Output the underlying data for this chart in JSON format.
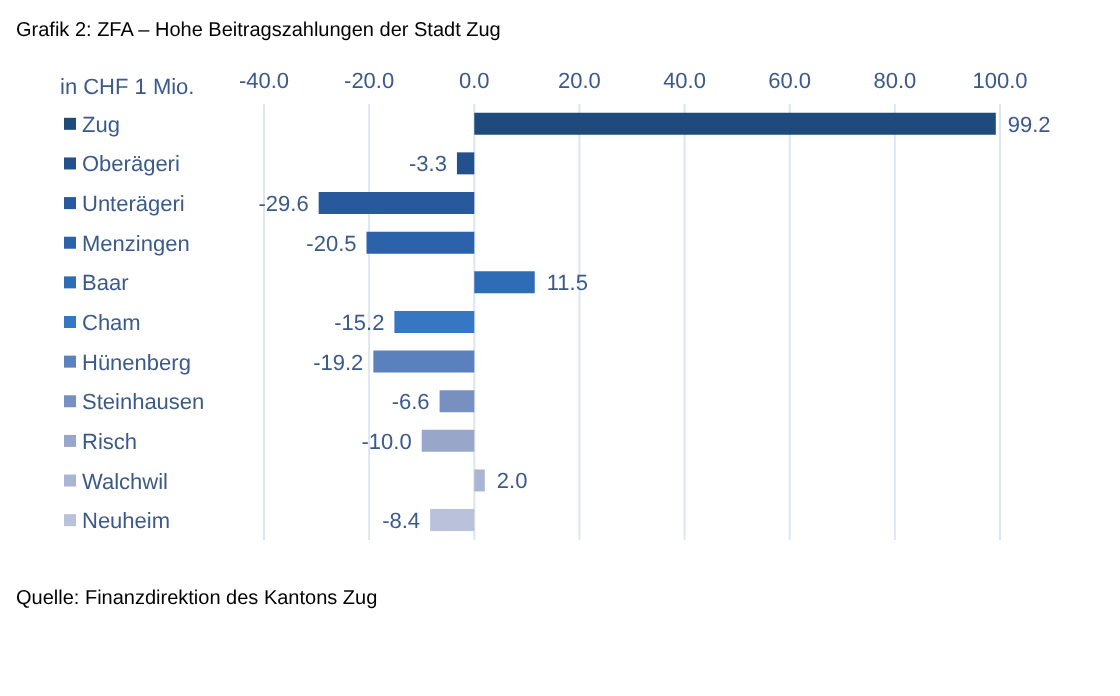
{
  "chart_data": {
    "type": "bar",
    "orientation": "horizontal",
    "title": "Grafik 2: ZFA – Hohe Beitragszahlungen der Stadt Zug",
    "ylabel": "in CHF 1 Mio.",
    "categories": [
      "Zug",
      "Oberägeri",
      "Unterägeri",
      "Menzingen",
      "Baar",
      "Cham",
      "Hünenberg",
      "Steinhausen",
      "Risch",
      "Walchwil",
      "Neuheim"
    ],
    "values": [
      99.2,
      -3.3,
      -29.6,
      -20.5,
      11.5,
      -15.2,
      -19.2,
      -6.6,
      -10.0,
      2.0,
      -8.4
    ],
    "colors": [
      "#1f4a7c",
      "#22518c",
      "#28599c",
      "#2b62aa",
      "#2f6cb6",
      "#3677c4",
      "#5a80bd",
      "#7890bf",
      "#97a6c9",
      "#a9b5d2",
      "#b9c2da"
    ],
    "value_labels": [
      "99.2",
      "-3.3",
      "-29.6",
      "-20.5",
      "11.5",
      "-15.2",
      "-19.2",
      "-6.6",
      "-10.0",
      "2.0",
      "-8.4"
    ],
    "xlim": [
      -40,
      100
    ],
    "xticks": [
      {
        "value": -40,
        "label": "-40.0"
      },
      {
        "value": -20,
        "label": "-20.0"
      },
      {
        "value": 0,
        "label": "0.0"
      },
      {
        "value": 20,
        "label": "20.0"
      },
      {
        "value": 40,
        "label": "40.0"
      },
      {
        "value": 60,
        "label": "60.0"
      },
      {
        "value": 80,
        "label": "80.0"
      },
      {
        "value": 100,
        "label": "100.0"
      }
    ],
    "grid": "x",
    "annotations": [
      "Quelle: Finanzdirektion des Kantons Zug"
    ]
  }
}
